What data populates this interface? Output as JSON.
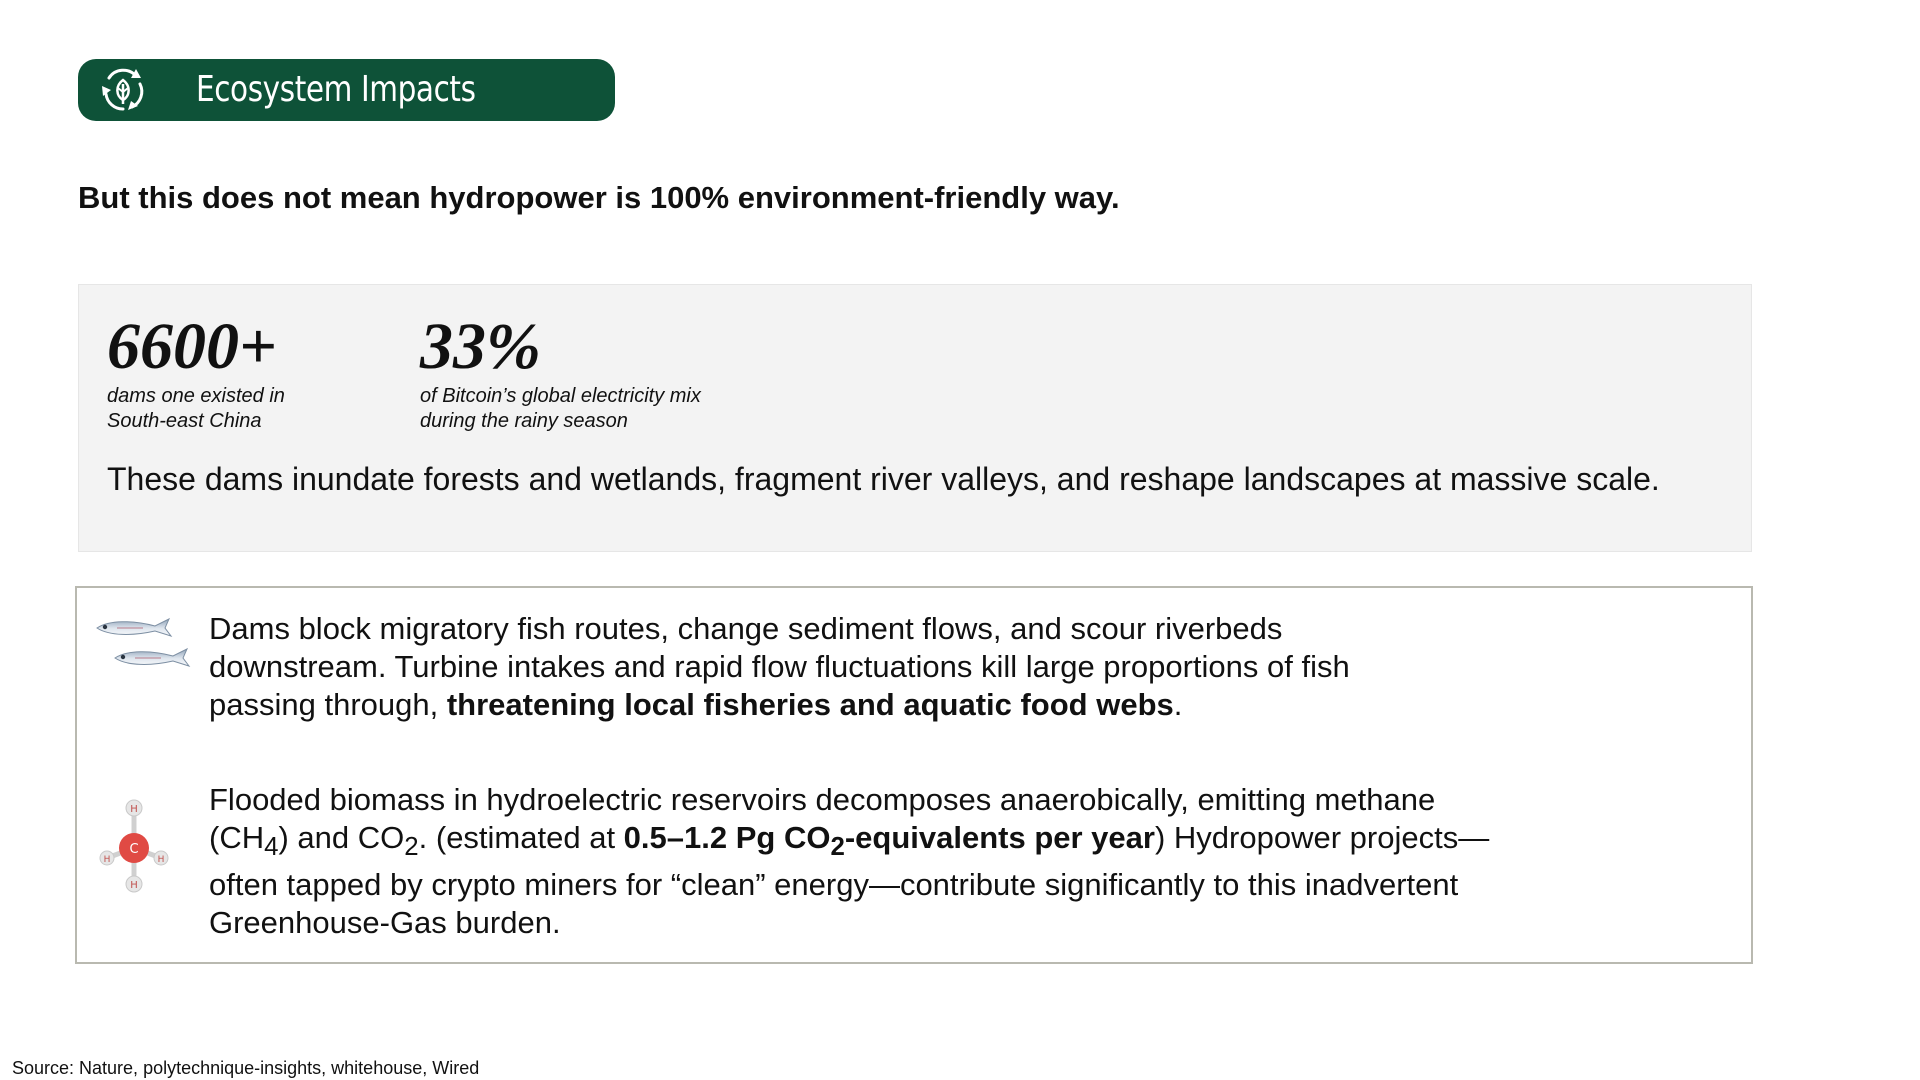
{
  "header": {
    "title": "Ecosystem Impacts",
    "icon": "ecosystem-cycle-icon",
    "color": "#0e5238"
  },
  "subtitle": "But this does not mean hydropower is 100% environment-friendly way.",
  "stats": {
    "items": [
      {
        "number": "6600+",
        "caption_line1": "dams one existed in",
        "caption_line2": "South-east China"
      },
      {
        "number": "33%",
        "caption_line1": "of Bitcoin’s global electricity mix",
        "caption_line2": "during the rainy season"
      }
    ],
    "summary": "These dams inundate forests and wetlands, fragment river valleys, and reshape landscapes at massive scale."
  },
  "details": {
    "fish": {
      "icon": "fish-icon",
      "line1": "Dams block migratory fish routes, change sediment flows, and scour riverbeds",
      "line2": "downstream. Turbine intakes and rapid flow fluctuations kill large proportions of fish",
      "line3_prefix": "passing through, ",
      "line3_bold": "threatening local fisheries and aquatic food webs",
      "line3_suffix": "."
    },
    "methane": {
      "icon": "methane-molecule-icon",
      "line1": "Flooded biomass in hydroelectric reservoirs decomposes anaerobically, emitting methane",
      "line2_a": "(CH",
      "line2_sub1": "4",
      "line2_b": ") and CO",
      "line2_sub2": "2",
      "line2_c": ". (estimated at ",
      "line2_bold_a": "0.5–1.2 Pg CO",
      "line2_bold_sub": "2",
      "line2_bold_b": "-equivalents per year",
      "line2_d": ") Hydropower projects—",
      "line3": "often tapped by crypto miners for “clean” energy—contribute significantly to this inadvertent",
      "line4": "Greenhouse-Gas burden."
    }
  },
  "source": "Source: Nature, polytechnique-insights, whitehouse, Wired"
}
